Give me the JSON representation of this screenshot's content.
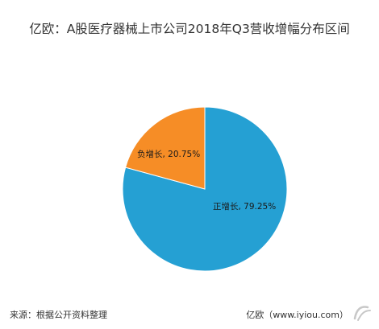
{
  "chart_data": {
    "type": "pie",
    "title": "亿欧：A股医疗器械上市公司2018年Q3营收增幅分布区间",
    "slices": [
      {
        "name": "正增长",
        "value": 79.25,
        "label": "正增长, 79.25%",
        "color": "#25a0d3"
      },
      {
        "name": "负增长",
        "value": 20.75,
        "label": "负增长, 20.75%",
        "color": "#f68d26"
      }
    ]
  },
  "footer": {
    "source": "来源：根据公开资料整理",
    "brand": "亿欧（www.iyiou.com）"
  },
  "watermark": {
    "icon": "iyiou-logo-icon",
    "color": "#c8c8c8"
  }
}
